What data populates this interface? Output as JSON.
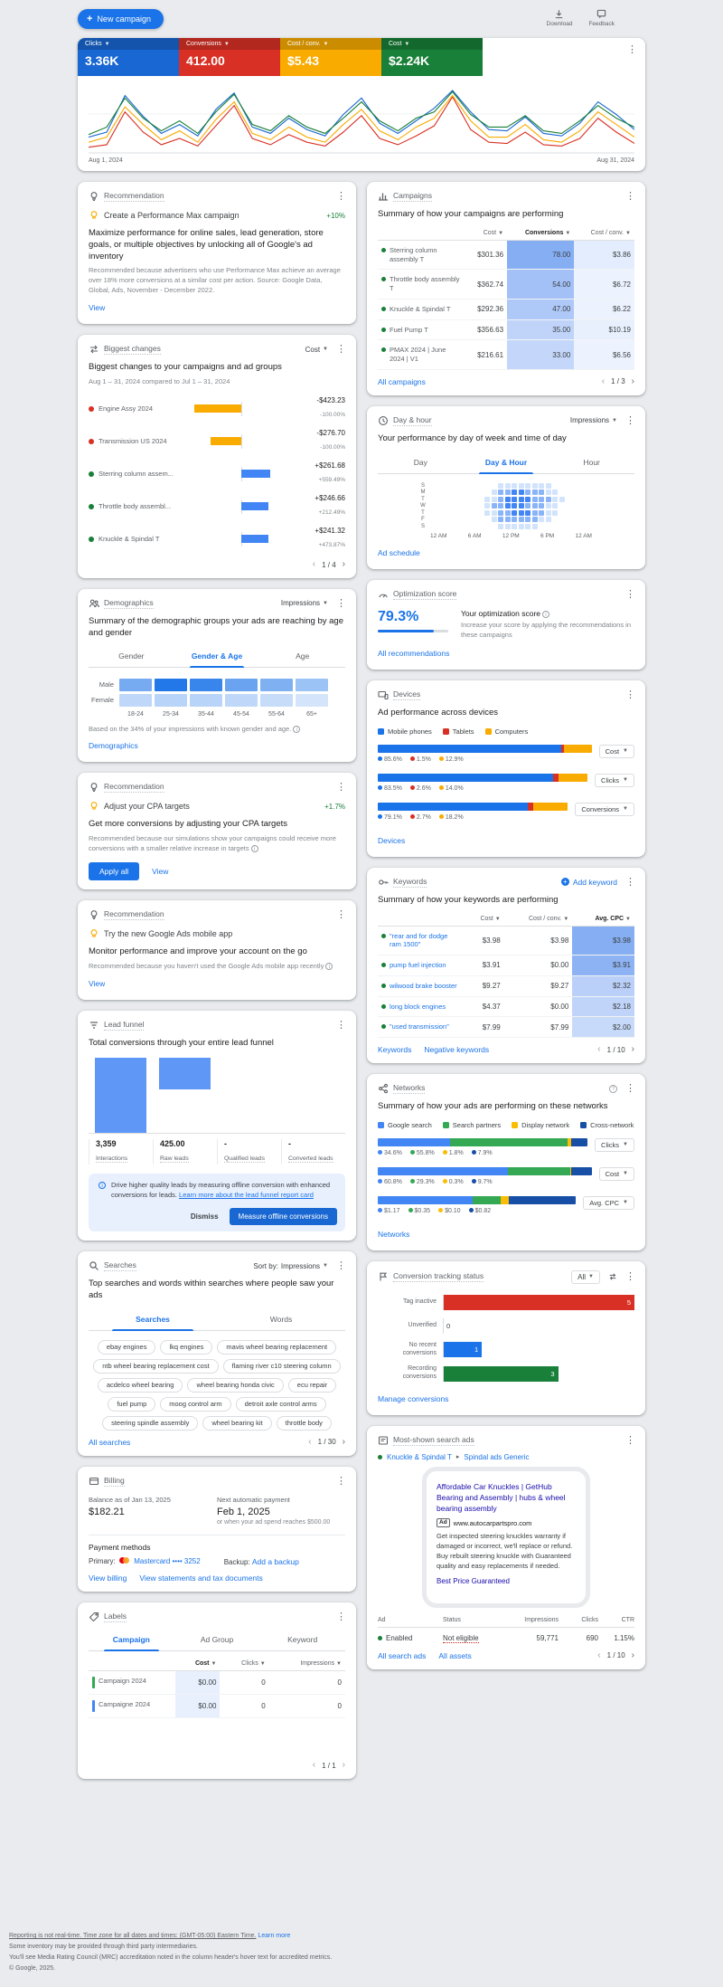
{
  "topbar": {
    "new_campaign_label": "New campaign",
    "download_label": "Download",
    "feedback_label": "Feedback"
  },
  "scorecard": {
    "metrics": [
      {
        "label": "Clicks",
        "value": "3.36K",
        "color": "#1967d2"
      },
      {
        "label": "Conversions",
        "value": "412.00",
        "color": "#d93025"
      },
      {
        "label": "Cost / conv.",
        "value": "$5.43",
        "color": "#f9ab00"
      },
      {
        "label": "Cost",
        "value": "$2.24K",
        "color": "#188038"
      }
    ],
    "x_axis_start": "Aug 1, 2024",
    "x_axis_end": "Aug 31, 2024"
  },
  "chart_data": {
    "type": "line",
    "x_range": [
      "Aug 1, 2024",
      "Aug 31, 2024"
    ],
    "note": "values are normalized 0-100 estimates read from the sparkline",
    "series": [
      {
        "name": "Clicks",
        "color": "#1967d2",
        "values": [
          22,
          30,
          88,
          55,
          28,
          42,
          24,
          66,
          92,
          38,
          28,
          52,
          34,
          24,
          58,
          84,
          44,
          28,
          48,
          68,
          96,
          62,
          34,
          32,
          54,
          28,
          24,
          44,
          78,
          58,
          34
        ]
      },
      {
        "name": "Conversions",
        "color": "#d93025",
        "values": [
          6,
          10,
          62,
          30,
          10,
          20,
          8,
          40,
          72,
          20,
          10,
          26,
          14,
          8,
          30,
          56,
          20,
          10,
          24,
          40,
          86,
          34,
          14,
          12,
          30,
          10,
          8,
          20,
          52,
          30,
          12
        ]
      },
      {
        "name": "Cost / conv.",
        "color": "#f9ab00",
        "values": [
          14,
          22,
          70,
          42,
          18,
          32,
          14,
          50,
          78,
          28,
          18,
          38,
          22,
          14,
          42,
          66,
          32,
          18,
          38,
          52,
          88,
          48,
          22,
          22,
          42,
          18,
          14,
          32,
          62,
          42,
          22
        ]
      },
      {
        "name": "Cost",
        "color": "#188038",
        "values": [
          26,
          38,
          84,
          52,
          32,
          48,
          28,
          62,
          90,
          42,
          32,
          56,
          38,
          28,
          52,
          78,
          48,
          32,
          52,
          62,
          94,
          58,
          38,
          38,
          56,
          32,
          28,
          48,
          72,
          52,
          38
        ]
      }
    ]
  },
  "rec1": {
    "card_title": "Recommendation",
    "item_title": "Create a Performance Max campaign",
    "badge": "+10%",
    "heading": "Maximize performance for online sales, lead generation, store goals, or multiple objectives by unlocking all of Google's ad inventory",
    "note": "Recommended because advertisers who use Performance Max achieve an average over 18% more conversions at a similar cost per action. Source: Google Data, Global, Ads, November - December 2022.",
    "view_label": "View"
  },
  "biggest_changes": {
    "card_title": "Biggest changes",
    "metric_selector": "Cost",
    "heading": "Biggest changes to your campaigns and ad groups",
    "subheading": "Aug 1 – 31, 2024 compared to Jul 1 – 31, 2024",
    "rows": [
      {
        "name": "Engine Assy 2024",
        "delta": "-$423.23",
        "pct": "-100.00%",
        "bar_pct": 100,
        "negative": true,
        "dot": "#d93025"
      },
      {
        "name": "Transmission US 2024",
        "delta": "-$276.70",
        "pct": "-100.00%",
        "bar_pct": 65,
        "negative": true,
        "dot": "#d93025"
      },
      {
        "name": "Sterring column assem...",
        "delta": "+$261.68",
        "pct": "+559.49%",
        "bar_pct": 62,
        "negative": false,
        "dot": "#188038"
      },
      {
        "name": "Throttle body assembl...",
        "delta": "+$246.66",
        "pct": "+212.49%",
        "bar_pct": 58,
        "negative": false,
        "dot": "#188038"
      },
      {
        "name": "Knuckle & Spindal T",
        "delta": "+$241.32",
        "pct": "+473.87%",
        "bar_pct": 57,
        "negative": false,
        "dot": "#188038"
      }
    ],
    "pagination": "1 / 4"
  },
  "demographics": {
    "card_title": "Demographics",
    "metric_selector": "Impressions",
    "heading": "Summary of the demographic groups your ads are reaching by age and gender",
    "tabs": [
      "Gender",
      "Gender & Age",
      "Age"
    ],
    "row_labels": [
      "Male",
      "Female"
    ],
    "col_labels": [
      "18-24",
      "25-34",
      "35-44",
      "45-54",
      "55-64",
      "65+"
    ],
    "heat": [
      [
        0.55,
        0.95,
        0.85,
        0.6,
        0.5,
        0.35
      ],
      [
        0.18,
        0.22,
        0.22,
        0.18,
        0.15,
        0.08
      ]
    ],
    "footnote": "Based on the 34% of your impressions with known gender and age.",
    "link_label": "Demographics"
  },
  "rec2": {
    "card_title": "Recommendation",
    "item_title": "Adjust your CPA targets",
    "badge": "+1.7%",
    "heading": "Get more conversions by adjusting your CPA targets",
    "note": "Recommended because our simulations show your campaigns could receive more conversions with a smaller relative increase in targets",
    "apply_all_label": "Apply all",
    "view_label": "View"
  },
  "rec3": {
    "card_title": "Recommendation",
    "item_title": "Try the new Google Ads mobile app",
    "heading": "Monitor performance and improve your account on the go",
    "note": "Recommended because you haven't used the Google Ads mobile app recently",
    "view_label": "View"
  },
  "lead_funnel": {
    "card_title": "Lead funnel",
    "heading": "Total conversions through your entire lead funnel",
    "stages": [
      {
        "value": "3,359",
        "label": "Interactions",
        "height_pct": 100
      },
      {
        "value": "425.00",
        "label": "Raw leads",
        "height_pct": 42
      },
      {
        "value": "-",
        "label": "Qualified leads",
        "height_pct": 0
      },
      {
        "value": "-",
        "label": "Converted leads",
        "height_pct": 0
      }
    ],
    "info_text": "Drive higher quality leads by measuring offline conversion with enhanced conversions for leads.",
    "info_link": "Learn more about the lead funnel report card",
    "dismiss_label": "Dismiss",
    "cta_label": "Measure offline conversions"
  },
  "searches": {
    "card_title": "Searches",
    "sort_label": "Sort by:",
    "sort_value": "Impressions",
    "heading": "Top searches and words within searches where people saw your ads",
    "tabs": [
      "Searches",
      "Words"
    ],
    "chips": [
      "ebay engines",
      "lkq engines",
      "mavis wheel bearing replacement",
      "ntb wheel bearing replacement cost",
      "flaming river c10 steering column",
      "acdelco wheel bearing",
      "wheel bearing honda civic",
      "ecu repair",
      "fuel pump",
      "moog control arm",
      "detroit axle control arms",
      "steering spindle assembly",
      "wheel bearing kit",
      "throttle body"
    ],
    "link_label": "All searches",
    "pagination": "1 / 30"
  },
  "billing": {
    "card_title": "Billing",
    "balance_label": "Balance as of Jan 13, 2025",
    "balance_value": "$182.21",
    "next_payment_label": "Next automatic payment",
    "next_payment_value": "Feb 1, 2025",
    "next_payment_note": "or when your ad spend reaches $500.00",
    "payment_methods_label": "Payment methods",
    "primary_label": "Primary:",
    "primary_value": "Mastercard •••• 3252",
    "backup_label": "Backup:",
    "backup_link": "Add a backup",
    "links": [
      "View billing",
      "View statements and tax documents"
    ]
  },
  "labels_card": {
    "card_title": "Labels",
    "tabs": [
      "Campaign",
      "Ad Group",
      "Keyword"
    ],
    "columns": [
      "Cost",
      "Clicks",
      "Impressions"
    ],
    "rows": [
      {
        "name": "Campaign 2024",
        "bar_color": "#34a853",
        "cost": "$0.00",
        "clicks": "0",
        "impressions": "0",
        "cost_bg": "#e8f0fe"
      },
      {
        "name": "Campaigne 2024",
        "bar_color": "#4285f4",
        "cost": "$0.00",
        "clicks": "0",
        "impressions": "0",
        "cost_bg": "#e8f0fe"
      }
    ],
    "pagination": "1 / 1"
  },
  "campaigns": {
    "card_title": "Campaigns",
    "heading": "Summary of how your campaigns are performing",
    "columns": [
      "Cost",
      "Conversions",
      "Cost / conv."
    ],
    "rows": [
      {
        "name": "Sterring column assembly T",
        "cost": "$301.36",
        "conversions": "78.00",
        "cost_conv": "$3.86",
        "conv_bg": "#85aef3",
        "cc_bg": "#e3edfd"
      },
      {
        "name": "Throttle body assembly T",
        "cost": "$362.74",
        "conversions": "54.00",
        "cost_conv": "$6.72",
        "conv_bg": "#a3c0f7",
        "cc_bg": "#edf3fe"
      },
      {
        "name": "Knuckle & Spindal T",
        "cost": "$292.36",
        "conversions": "47.00",
        "cost_conv": "$6.22",
        "conv_bg": "#aec8f8",
        "cc_bg": "#edf3fe"
      },
      {
        "name": "Fuel Pump T",
        "cost": "$356.63",
        "conversions": "35.00",
        "cost_conv": "$10.19",
        "conv_bg": "#c0d4f9",
        "cc_bg": "#e8f0fe"
      },
      {
        "name": "PMAX 2024 | June 2024 | V1",
        "cost": "$216.61",
        "conversions": "33.00",
        "cost_conv": "$6.56",
        "conv_bg": "#c4d7fa",
        "cc_bg": "#edf3fe"
      }
    ],
    "link_label": "All campaigns",
    "pagination": "1 / 3"
  },
  "day_hour": {
    "card_title": "Day & hour",
    "metric_selector": "Impressions",
    "heading": "Your performance by day of week and time of day",
    "tabs": [
      "Day",
      "Day & Hour",
      "Hour"
    ],
    "day_labels": [
      "S",
      "M",
      "T",
      "W",
      "T",
      "F",
      "S"
    ],
    "time_labels": [
      "12 AM",
      "6 AM",
      "12 PM",
      "6 PM",
      "12 AM"
    ],
    "heat": [
      [
        0,
        0,
        0,
        0,
        0,
        0,
        0,
        0,
        0,
        0,
        1,
        1,
        1,
        1,
        1,
        1,
        1,
        1,
        0,
        0,
        0,
        0,
        0,
        0
      ],
      [
        0,
        0,
        0,
        0,
        0,
        0,
        0,
        0,
        0,
        1,
        2,
        2,
        3,
        3,
        2,
        2,
        2,
        1,
        1,
        0,
        0,
        0,
        0,
        0
      ],
      [
        0,
        0,
        0,
        0,
        0,
        0,
        0,
        0,
        1,
        1,
        2,
        3,
        3,
        3,
        3,
        2,
        2,
        2,
        1,
        1,
        0,
        0,
        0,
        0
      ],
      [
        0,
        0,
        0,
        0,
        0,
        0,
        0,
        0,
        1,
        2,
        2,
        3,
        3,
        3,
        2,
        2,
        2,
        1,
        1,
        0,
        0,
        0,
        0,
        0
      ],
      [
        0,
        0,
        0,
        0,
        0,
        0,
        0,
        0,
        1,
        1,
        2,
        2,
        3,
        3,
        3,
        2,
        2,
        1,
        1,
        0,
        0,
        0,
        0,
        0
      ],
      [
        0,
        0,
        0,
        0,
        0,
        0,
        0,
        0,
        0,
        1,
        2,
        2,
        2,
        2,
        2,
        2,
        1,
        1,
        0,
        0,
        0,
        0,
        0,
        0
      ],
      [
        0,
        0,
        0,
        0,
        0,
        0,
        0,
        0,
        0,
        0,
        1,
        1,
        1,
        1,
        1,
        1,
        0,
        0,
        0,
        0,
        0,
        0,
        0,
        0
      ]
    ],
    "link_label": "Ad schedule"
  },
  "optimization": {
    "card_title": "Optimization score",
    "score": "79.3%",
    "progress_pct": 79.3,
    "heading": "Your optimization score",
    "note": "Increase your score by applying the recommendations in these campaigns",
    "link_label": "All recommendations"
  },
  "devices": {
    "card_title": "Devices",
    "heading": "Ad performance across devices",
    "legend": [
      {
        "label": "Mobile phones",
        "color": "#1a73e8"
      },
      {
        "label": "Tablets",
        "color": "#d93025"
      },
      {
        "label": "Computers",
        "color": "#f9ab00"
      }
    ],
    "bars": [
      {
        "metric": "Cost",
        "segments": [
          85.6,
          1.5,
          12.9
        ],
        "labels": [
          "85.6%",
          "1.5%",
          "12.9%"
        ]
      },
      {
        "metric": "Clicks",
        "segments": [
          83.5,
          2.6,
          14.0
        ],
        "labels": [
          "83.5%",
          "2.6%",
          "14.0%"
        ]
      },
      {
        "metric": "Conversions",
        "segments": [
          79.1,
          2.7,
          18.2
        ],
        "labels": [
          "79.1%",
          "2.7%",
          "18.2%"
        ]
      }
    ],
    "link_label": "Devices"
  },
  "keywords": {
    "card_title": "Keywords",
    "add_keyword_label": "Add keyword",
    "heading": "Summary of how your keywords are performing",
    "columns": [
      "Cost",
      "Cost / conv.",
      "Avg. CPC"
    ],
    "rows": [
      {
        "name": "\"rear and for dodge ram 1500\"",
        "cost": "$3.98",
        "cost_conv": "$3.98",
        "avg_cpc": "$3.98",
        "cpc_bg": "#85aef3"
      },
      {
        "name": "pump fuel injection",
        "cost": "$3.91",
        "cost_conv": "$0.00",
        "avg_cpc": "$3.91",
        "cpc_bg": "#8db3f4"
      },
      {
        "name": "wilwood brake booster",
        "cost": "$9.27",
        "cost_conv": "$9.27",
        "avg_cpc": "$2.32",
        "cpc_bg": "#bbd0f9"
      },
      {
        "name": "long block engines",
        "cost": "$4.37",
        "cost_conv": "$0.00",
        "avg_cpc": "$2.18",
        "cpc_bg": "#c0d4f9"
      },
      {
        "name": "\"used transmission\"",
        "cost": "$7.99",
        "cost_conv": "$7.99",
        "avg_cpc": "$2.00",
        "cpc_bg": "#c8daf9"
      }
    ],
    "links": [
      "Keywords",
      "Negative keywords"
    ],
    "pagination": "1 / 10"
  },
  "networks": {
    "card_title": "Networks",
    "heading": "Summary of how your ads are performing on these networks",
    "legend": [
      {
        "label": "Google search",
        "color": "#4285f4"
      },
      {
        "label": "Search partners",
        "color": "#34a853"
      },
      {
        "label": "Display network",
        "color": "#fbbc04"
      },
      {
        "label": "Cross-network",
        "color": "#174ea6"
      }
    ],
    "bars": [
      {
        "metric": "Clicks",
        "segments": [
          34.6,
          55.8,
          1.8,
          7.9
        ],
        "labels": [
          "34.6%",
          "55.8%",
          "1.8%",
          "7.9%"
        ]
      },
      {
        "metric": "Cost",
        "segments": [
          60.8,
          29.3,
          0.3,
          9.7
        ],
        "labels": [
          "60.8%",
          "29.3%",
          "0.3%",
          "9.7%"
        ]
      },
      {
        "metric": "Avg. CPC",
        "segments": [
          47.9,
          14.3,
          4.1,
          33.6
        ],
        "labels": [
          "$1.17",
          "$0.35",
          "$0.10",
          "$0.82"
        ]
      }
    ],
    "link_label": "Networks"
  },
  "conversion_tracking": {
    "card_title": "Conversion tracking status",
    "filter_value": "All",
    "rows": [
      {
        "label": "Tag inactive",
        "value": "5",
        "color": "#d93025",
        "width_pct": 100
      },
      {
        "label": "Unverified",
        "value": "0",
        "color": "#f9ab00",
        "width_pct": 0
      },
      {
        "label": "No recent conversions",
        "value": "1",
        "color": "#1a73e8",
        "width_pct": 20
      },
      {
        "label": "Recording conversions",
        "value": "3",
        "color": "#188038",
        "width_pct": 60
      }
    ],
    "link_label": "Manage conversions"
  },
  "most_shown": {
    "card_title": "Most-shown search ads",
    "campaign_link": "Knuckle & Spindal T",
    "adgroup_link": "Spindal ads Generic",
    "ad_title": "Affordable Car Knuckles | GetHub Bearing and Assembly | hubs & wheel bearing assembly",
    "ad_badge": "Ad",
    "ad_url": "www.autocarpartspro.com",
    "ad_description": "Get inspected steering knuckles warranty if damaged or incorrect, we'll replace or refund. Buy rebuilt steering knuckle with Guaranteed quality and easy replacements if needed.",
    "ad_sitelink": "Best Price Guaranteed",
    "columns": [
      "Ad",
      "Status",
      "Impressions",
      "Clicks",
      "CTR"
    ],
    "row": {
      "status_dot_label": "Enabled",
      "status": "Not eligible",
      "impressions": "59,771",
      "clicks": "690",
      "ctr": "1.15%"
    },
    "links": [
      "All search ads",
      "All assets"
    ],
    "pagination": "1 / 10"
  },
  "footer": {
    "line1": "Reporting is not real-time. Time zone for all dates and times: (GMT-05:00) Eastern Time.",
    "line1_link": "Learn more",
    "line2": "Some inventory may be provided through third party intermediaries.",
    "line3": "You'll see Media Rating Council (MRC) accreditation noted in the column header's hover text for accredited metrics.",
    "line4": "© Google, 2025."
  }
}
